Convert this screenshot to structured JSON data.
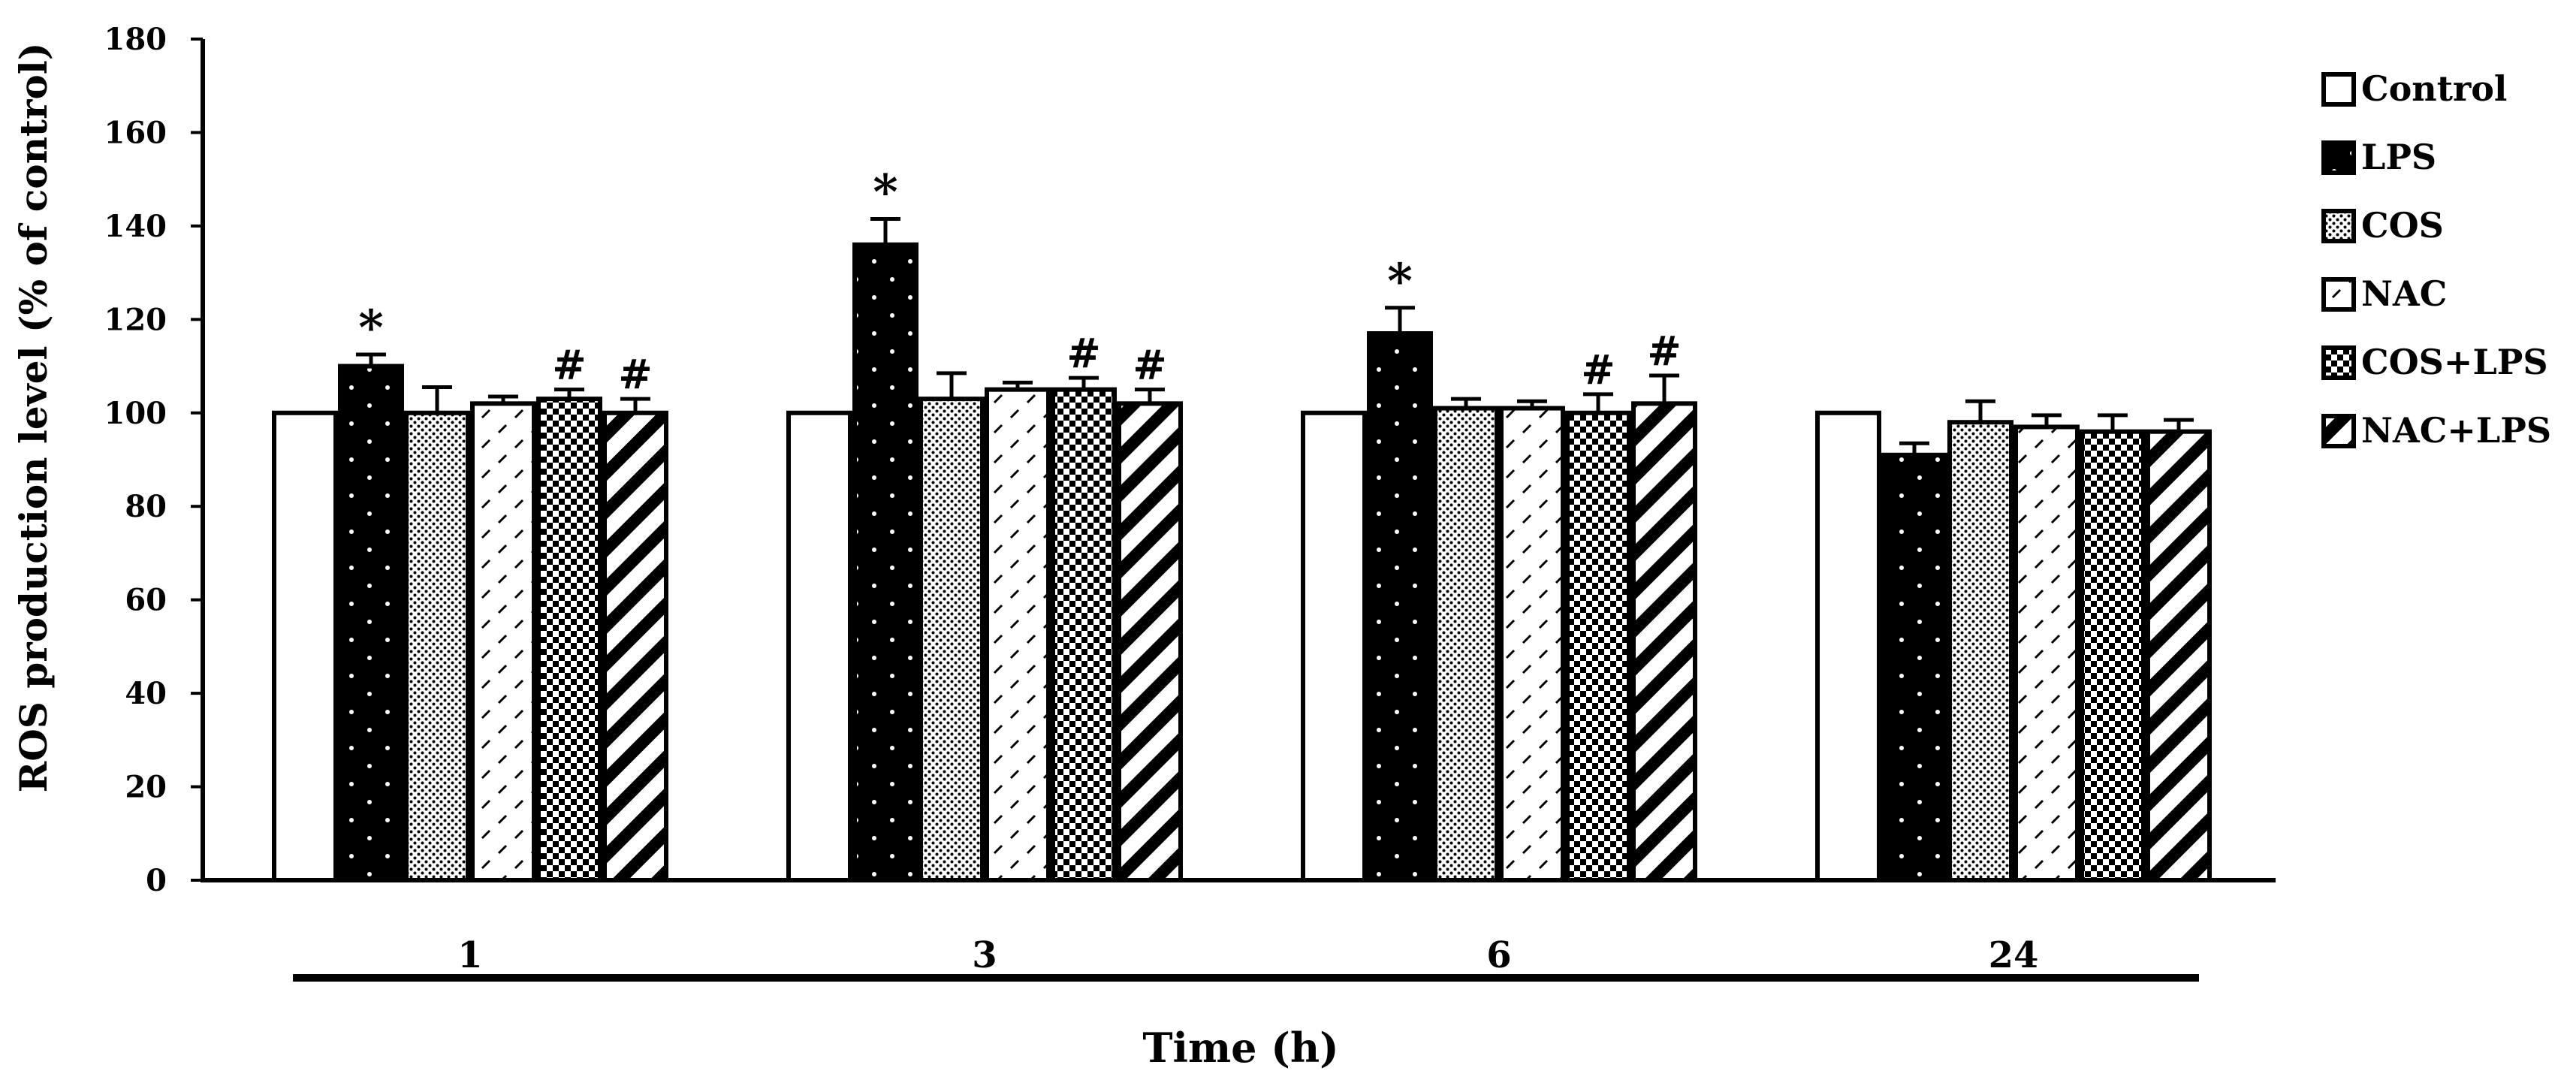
{
  "chart_data": {
    "type": "bar",
    "title": "",
    "xlabel": "Time (h)",
    "ylabel": "ROS production level (% of control)",
    "ylim": [
      0,
      180
    ],
    "yticks": [
      0,
      20,
      40,
      60,
      80,
      100,
      120,
      140,
      160,
      180
    ],
    "categories": [
      "1",
      "3",
      "6",
      "24"
    ],
    "legend_position": "right",
    "series": [
      {
        "name": "Control",
        "pattern": "white",
        "values": [
          100,
          100,
          100,
          100
        ],
        "errors": [
          0,
          0,
          0,
          0
        ],
        "marks": [
          "",
          "",
          "",
          ""
        ]
      },
      {
        "name": "LPS",
        "pattern": "black-dots",
        "values": [
          110,
          136,
          117,
          91
        ],
        "errors": [
          2.5,
          5.5,
          5.5,
          2.5
        ],
        "marks": [
          "*",
          "*",
          "*",
          ""
        ]
      },
      {
        "name": "COS",
        "pattern": "fine-dots",
        "values": [
          100,
          103,
          101,
          98
        ],
        "errors": [
          5.5,
          5.5,
          2,
          4.5
        ],
        "marks": [
          "",
          "",
          "",
          ""
        ]
      },
      {
        "name": "NAC",
        "pattern": "dashes",
        "values": [
          102,
          105,
          101,
          97
        ],
        "errors": [
          1.5,
          1.5,
          1.5,
          2.5
        ],
        "marks": [
          "",
          "",
          "",
          ""
        ]
      },
      {
        "name": "COS+LPS",
        "pattern": "checker",
        "values": [
          103,
          105,
          100,
          96
        ],
        "errors": [
          2,
          2.5,
          4,
          3.5
        ],
        "marks": [
          "#",
          "#",
          "#",
          ""
        ]
      },
      {
        "name": "NAC+LPS",
        "pattern": "diagonal",
        "values": [
          100,
          102,
          102,
          96
        ],
        "errors": [
          3,
          3,
          6,
          2.5
        ],
        "marks": [
          "#",
          "#",
          "#",
          ""
        ]
      }
    ]
  }
}
